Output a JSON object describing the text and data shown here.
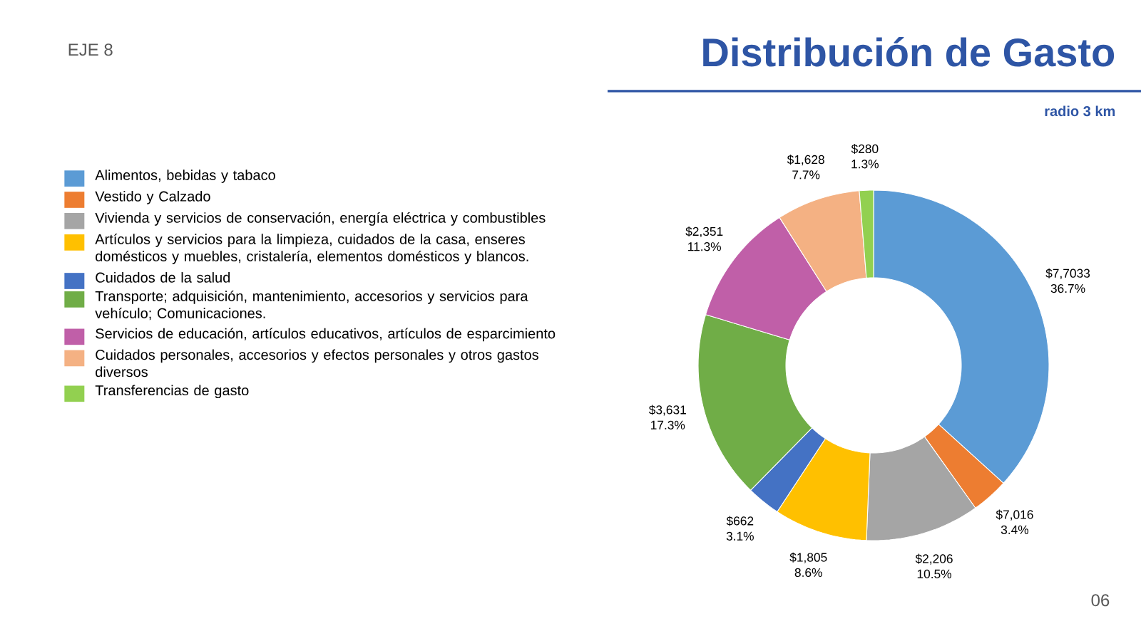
{
  "chart_data": {
    "type": "donut",
    "title": "Distribución de Gasto",
    "subtitle": "radio 3 km",
    "categories": [
      "Alimentos, bebidas y tabaco",
      "Vestido y Calzado",
      "Vivienda y servicios de conservación, energía eléctrica y combustibles",
      "Artículos y servicios para la limpieza, cuidados de la casa, enseres domésticos y muebles, cristalería, elementos domésticos y blancos.",
      "Cuidados de la salud",
      "Transporte; adquisición, mantenimiento, accesorios y servicios para vehículo; Comunicaciones.",
      "Servicios de educación, artículos educativos, artículos de esparcimiento",
      "Cuidados personales, accesorios y efectos personales y otros gastos diversos",
      "Transferencias de gasto"
    ],
    "values": [
      36.7,
      3.4,
      10.5,
      8.6,
      3.1,
      17.3,
      11.3,
      7.7,
      1.3
    ],
    "value_labels": [
      "$7,7033 36.7%",
      "$7,016 3.4%",
      "$2,206 10.5%",
      "$1,805 8.6%",
      "$662 3.1%",
      "$3,631 17.3%",
      "$2,351 11.3%",
      "$1,628 7.7%",
      "$280 1.3%"
    ],
    "colors": [
      "#5b9bd5",
      "#ed7d31",
      "#a5a5a5",
      "#ffc000",
      "#4472c4",
      "#70ad47",
      "#c05fa8",
      "#f4b183",
      "#92d050"
    ],
    "legend": "left",
    "annotations": [
      "EJE 8",
      "06"
    ]
  }
}
